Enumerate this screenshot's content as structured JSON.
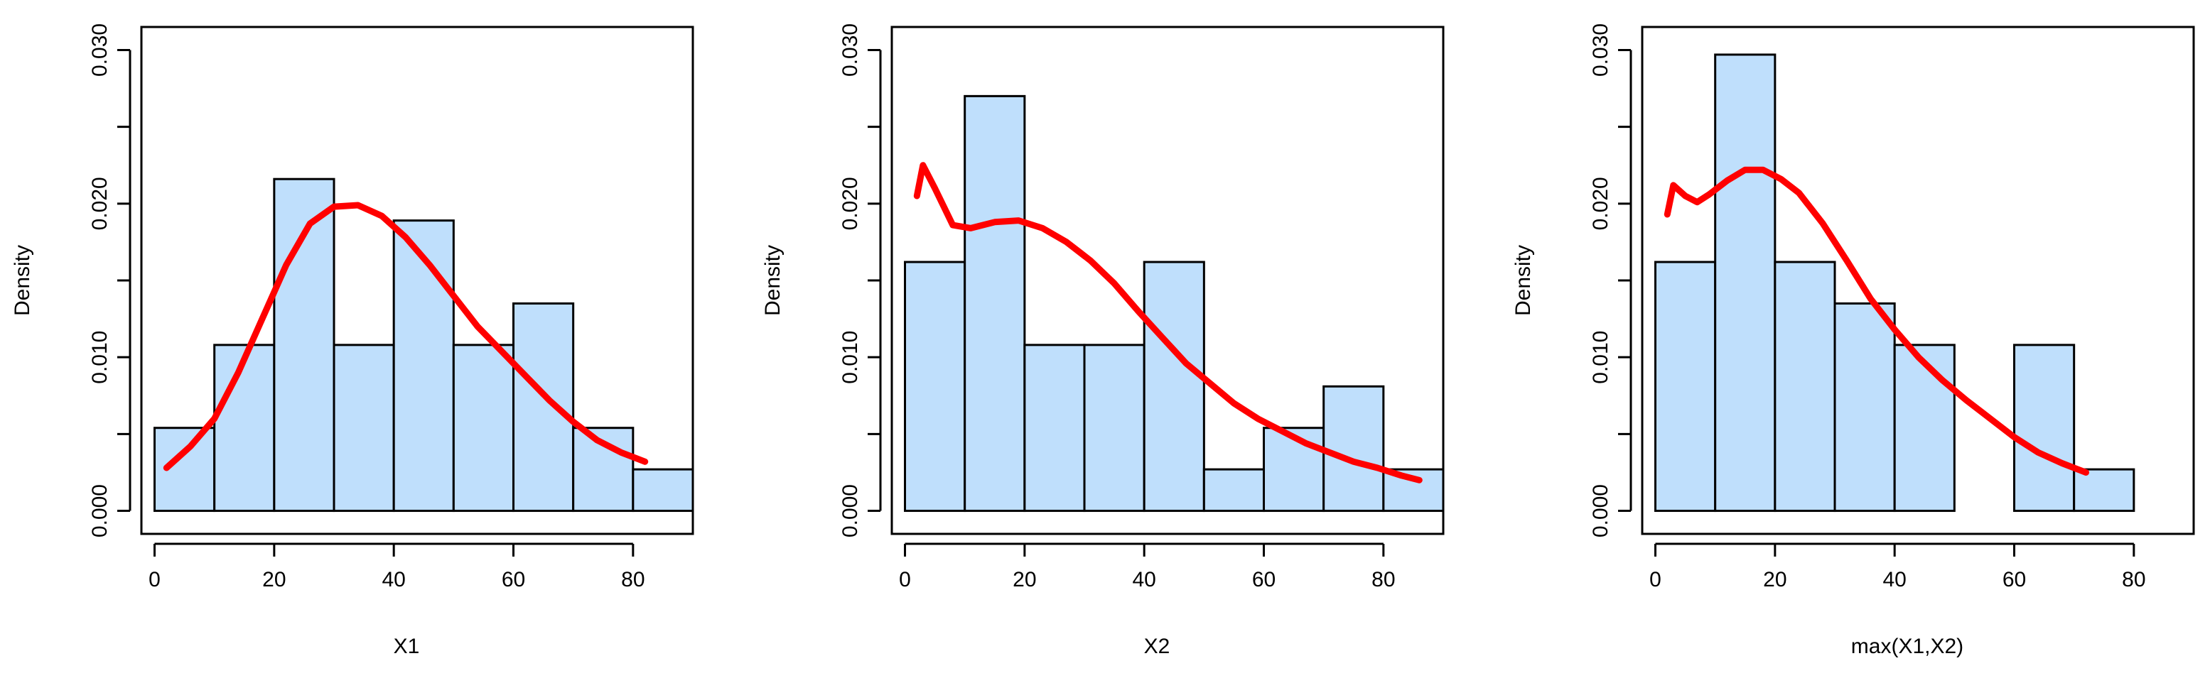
{
  "colors": {
    "bar_fill": "#bfdffc",
    "bar_stroke": "#000000",
    "density_line": "#ff0000",
    "axis": "#000000",
    "background": "#ffffff"
  },
  "chart_data": [
    {
      "type": "bar",
      "subtype": "histogram-with-density",
      "title": "",
      "xlabel": "X1",
      "ylabel": "Density",
      "xlim": [
        0,
        90
      ],
      "ylim": [
        0,
        0.03
      ],
      "x_ticks": [
        0,
        20,
        40,
        60,
        80
      ],
      "x_tick_labels": [
        "0",
        "20",
        "40",
        "60",
        "80"
      ],
      "y_ticks": [
        0,
        0.005,
        0.01,
        0.015,
        0.02,
        0.025,
        0.03
      ],
      "y_tick_labels": [
        "0.000",
        "",
        "0.010",
        "",
        "0.020",
        "",
        "0.030"
      ],
      "bin_edges": [
        0,
        10,
        20,
        30,
        40,
        50,
        60,
        70,
        80,
        90
      ],
      "values": [
        0.0054,
        0.0108,
        0.0216,
        0.0108,
        0.0189,
        0.0108,
        0.0135,
        0.0054,
        0.0027
      ],
      "density": {
        "x": [
          2,
          6,
          10,
          14,
          18,
          22,
          26,
          30,
          34,
          38,
          42,
          46,
          50,
          54,
          58,
          62,
          66,
          70,
          74,
          78,
          82
        ],
        "y": [
          0.0028,
          0.0042,
          0.006,
          0.009,
          0.0125,
          0.016,
          0.0187,
          0.0198,
          0.0199,
          0.0192,
          0.0178,
          0.016,
          0.014,
          0.012,
          0.0104,
          0.0088,
          0.0072,
          0.0058,
          0.0046,
          0.0038,
          0.0032
        ]
      }
    },
    {
      "type": "bar",
      "subtype": "histogram-with-density",
      "title": "",
      "xlabel": "X2",
      "ylabel": "Density",
      "xlim": [
        0,
        90
      ],
      "ylim": [
        0,
        0.03
      ],
      "x_ticks": [
        0,
        20,
        40,
        60,
        80
      ],
      "x_tick_labels": [
        "0",
        "20",
        "40",
        "60",
        "80"
      ],
      "y_ticks": [
        0,
        0.005,
        0.01,
        0.015,
        0.02,
        0.025,
        0.03
      ],
      "y_tick_labels": [
        "0.000",
        "",
        "0.010",
        "",
        "0.020",
        "",
        "0.030"
      ],
      "bin_edges": [
        0,
        10,
        20,
        30,
        40,
        50,
        60,
        70,
        80,
        90
      ],
      "values": [
        0.0162,
        0.027,
        0.0108,
        0.0108,
        0.0162,
        0.0027,
        0.0054,
        0.0081,
        0.0027
      ],
      "density": {
        "x": [
          2,
          3,
          5,
          8,
          11,
          15,
          19,
          23,
          27,
          31,
          35,
          39,
          43,
          47,
          51,
          55,
          59,
          63,
          67,
          71,
          75,
          79,
          83,
          86
        ],
        "y": [
          0.0205,
          0.0225,
          0.021,
          0.0186,
          0.0184,
          0.0188,
          0.0189,
          0.0184,
          0.0175,
          0.0163,
          0.0148,
          0.013,
          0.0113,
          0.0096,
          0.0083,
          0.007,
          0.006,
          0.0052,
          0.0044,
          0.0038,
          0.0032,
          0.0028,
          0.0023,
          0.002
        ]
      }
    },
    {
      "type": "bar",
      "subtype": "histogram-with-density",
      "title": "",
      "xlabel": "max(X1,X2)",
      "ylabel": "Density",
      "xlim": [
        0,
        90
      ],
      "ylim": [
        0,
        0.03
      ],
      "x_ticks": [
        0,
        20,
        40,
        60,
        80
      ],
      "x_tick_labels": [
        "0",
        "20",
        "40",
        "60",
        "80"
      ],
      "y_ticks": [
        0,
        0.005,
        0.01,
        0.015,
        0.02,
        0.025,
        0.03
      ],
      "y_tick_labels": [
        "0.000",
        "",
        "0.010",
        "",
        "0.020",
        "",
        "0.030"
      ],
      "bin_edges": [
        0,
        10,
        20,
        30,
        40,
        50,
        60,
        70,
        80
      ],
      "values": [
        0.0162,
        0.0297,
        0.0162,
        0.0135,
        0.0108,
        0.0,
        0.0108,
        0.0027
      ],
      "density": {
        "x": [
          2,
          3,
          5,
          7,
          9,
          12,
          15,
          18,
          21,
          24,
          28,
          32,
          36,
          40,
          44,
          48,
          52,
          56,
          60,
          64,
          68,
          72
        ],
        "y": [
          0.0193,
          0.0212,
          0.0205,
          0.0201,
          0.0206,
          0.0215,
          0.0222,
          0.0222,
          0.0216,
          0.0207,
          0.0187,
          0.0163,
          0.0138,
          0.0118,
          0.01,
          0.0085,
          0.0072,
          0.006,
          0.0048,
          0.0038,
          0.0031,
          0.0025
        ]
      }
    }
  ]
}
